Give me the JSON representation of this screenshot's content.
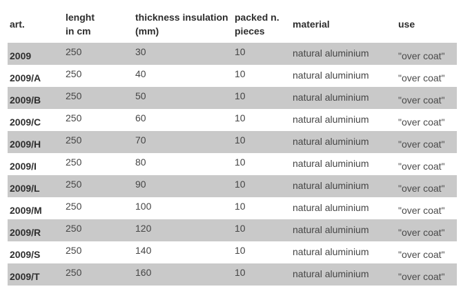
{
  "table": {
    "columns": [
      {
        "key": "art",
        "label_lines": [
          "art."
        ]
      },
      {
        "key": "length",
        "label_lines": [
          "lenght",
          "in cm"
        ]
      },
      {
        "key": "thickness",
        "label_lines": [
          "thickness insulation",
          "(mm)"
        ]
      },
      {
        "key": "packed",
        "label_lines": [
          "packed n.",
          "pieces"
        ]
      },
      {
        "key": "material",
        "label_lines": [
          "material"
        ]
      },
      {
        "key": "use",
        "label_lines": [
          "use"
        ]
      }
    ],
    "rows": [
      {
        "art": "2009",
        "length": "250",
        "thickness": "30",
        "packed": "10",
        "material": "natural aluminium",
        "use": "\"over coat\""
      },
      {
        "art": "2009/A",
        "length": "250",
        "thickness": "40",
        "packed": "10",
        "material": "natural aluminium",
        "use": "\"over coat\""
      },
      {
        "art": "2009/B",
        "length": "250",
        "thickness": "50",
        "packed": "10",
        "material": "natural aluminium",
        "use": "\"over coat\""
      },
      {
        "art": "2009/C",
        "length": "250",
        "thickness": "60",
        "packed": "10",
        "material": "natural aluminium",
        "use": "\"over coat\""
      },
      {
        "art": "2009/H",
        "length": "250",
        "thickness": "70",
        "packed": "10",
        "material": "natural aluminium",
        "use": "\"over coat\""
      },
      {
        "art": "2009/I",
        "length": "250",
        "thickness": "80",
        "packed": "10",
        "material": "natural aluminium",
        "use": "\"over coat\""
      },
      {
        "art": "2009/L",
        "length": "250",
        "thickness": "90",
        "packed": "10",
        "material": "natural aluminium",
        "use": "\"over coat\""
      },
      {
        "art": "2009/M",
        "length": "250",
        "thickness": "100",
        "packed": "10",
        "material": "natural aluminium",
        "use": "\"over coat\""
      },
      {
        "art": "2009/R",
        "length": "250",
        "thickness": "120",
        "packed": "10",
        "material": "natural aluminium",
        "use": "\"over coat\""
      },
      {
        "art": "2009/S",
        "length": "250",
        "thickness": "140",
        "packed": "10",
        "material": "natural aluminium",
        "use": "\"over coat\""
      },
      {
        "art": "2009/T",
        "length": "250",
        "thickness": "160",
        "packed": "10",
        "material": "natural aluminium",
        "use": "\"over coat\""
      }
    ]
  },
  "colors": {
    "stripe_row": "#c9c9c9",
    "plain_row": "#ffffff",
    "body_text": "#454545",
    "header_text": "#2d2d2d"
  }
}
